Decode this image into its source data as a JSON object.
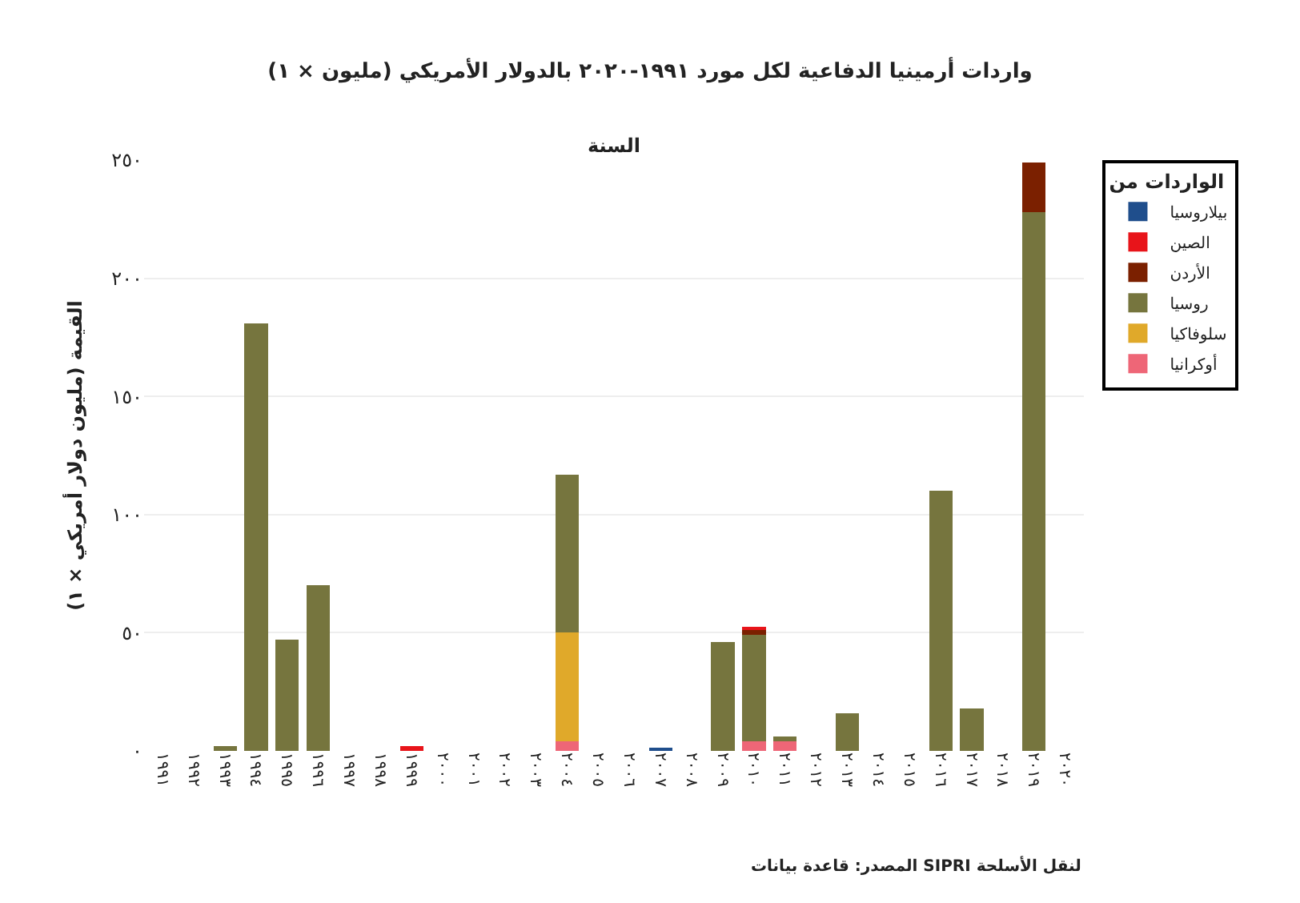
{
  "chart_data": {
    "type": "bar",
    "stacked": true,
    "title": "واردات أرمينيا الدفاعية لكل مورد ١٩٩١-٢٠٢٠ بالدولار الأمريكي (مليون × ١)",
    "xlabel": "السنة",
    "ylabel": "القيمة (مليون دولار أمريكي × ١)",
    "legend_title": "الواردات من",
    "categories": [
      "١٩٩١",
      "١٩٩٢",
      "١٩٩٣",
      "١٩٩٤",
      "١٩٩٥",
      "١٩٩٦",
      "١٩٩٧",
      "١٩٩٨",
      "١٩٩٩",
      "٢٠٠٠",
      "٢٠٠١",
      "٢٠٠٢",
      "٢٠٠٣",
      "٢٠٠٤",
      "٢٠٠٥",
      "٢٠٠٦",
      "٢٠٠٧",
      "٢٠٠٨",
      "٢٠٠٩",
      "٢٠١٠",
      "٢٠١١",
      "٢٠١٢",
      "٢٠١٣",
      "٢٠١٤",
      "٢٠١٥",
      "٢٠١٦",
      "٢٠١٧",
      "٢٠١٨",
      "٢٠١٩",
      "٢٠٢٠"
    ],
    "series": [
      {
        "name": "أوكرانيا",
        "color": "#ee6677",
        "values": [
          null,
          null,
          null,
          null,
          null,
          null,
          null,
          null,
          null,
          null,
          null,
          null,
          null,
          4,
          null,
          null,
          null,
          null,
          null,
          4,
          4,
          null,
          null,
          null,
          null,
          null,
          null,
          null,
          null,
          null
        ]
      },
      {
        "name": "سلوفاكيا",
        "color": "#e0a92a",
        "values": [
          null,
          null,
          null,
          null,
          null,
          null,
          null,
          null,
          null,
          null,
          null,
          null,
          null,
          46,
          null,
          null,
          null,
          null,
          null,
          null,
          null,
          null,
          null,
          null,
          null,
          null,
          null,
          null,
          null,
          null
        ]
      },
      {
        "name": "روسيا",
        "color": "#76753e",
        "values": [
          null,
          null,
          2,
          181,
          47,
          70,
          null,
          null,
          null,
          null,
          null,
          null,
          null,
          67,
          null,
          null,
          null,
          null,
          46,
          45,
          2,
          null,
          16,
          null,
          null,
          110,
          18,
          null,
          228,
          null
        ]
      },
      {
        "name": "الأردن",
        "color": "#7b2000",
        "values": [
          null,
          null,
          null,
          null,
          null,
          null,
          null,
          null,
          null,
          null,
          null,
          null,
          null,
          null,
          null,
          null,
          null,
          null,
          null,
          2,
          null,
          null,
          null,
          null,
          null,
          null,
          null,
          null,
          21,
          null
        ]
      },
      {
        "name": "الصين",
        "color": "#e8141a",
        "values": [
          null,
          null,
          null,
          null,
          null,
          null,
          null,
          null,
          2,
          null,
          null,
          null,
          null,
          null,
          null,
          null,
          null,
          null,
          null,
          1.5,
          null,
          null,
          null,
          null,
          null,
          null,
          null,
          null,
          null,
          null
        ]
      },
      {
        "name": "بيلاروسيا",
        "color": "#1f4e8c",
        "values": [
          null,
          null,
          null,
          null,
          null,
          null,
          null,
          null,
          null,
          null,
          null,
          null,
          null,
          null,
          null,
          null,
          1,
          null,
          null,
          null,
          null,
          null,
          null,
          null,
          null,
          null,
          null,
          null,
          null,
          null
        ]
      }
    ],
    "ylim": [
      0,
      250
    ],
    "yticks": [
      {
        "value": 0,
        "label": "٠"
      },
      {
        "value": 50,
        "label": "٥٠"
      },
      {
        "value": 100,
        "label": "١٠٠"
      },
      {
        "value": 150,
        "label": "١٥٠"
      },
      {
        "value": 200,
        "label": "٢٠٠"
      },
      {
        "value": 250,
        "label": "٢٥٠"
      }
    ],
    "grid": "y",
    "legend": "top right",
    "annotations": [
      "المصدر: قاعدة بيانات SIPRI لنقل الأسلحة"
    ]
  }
}
